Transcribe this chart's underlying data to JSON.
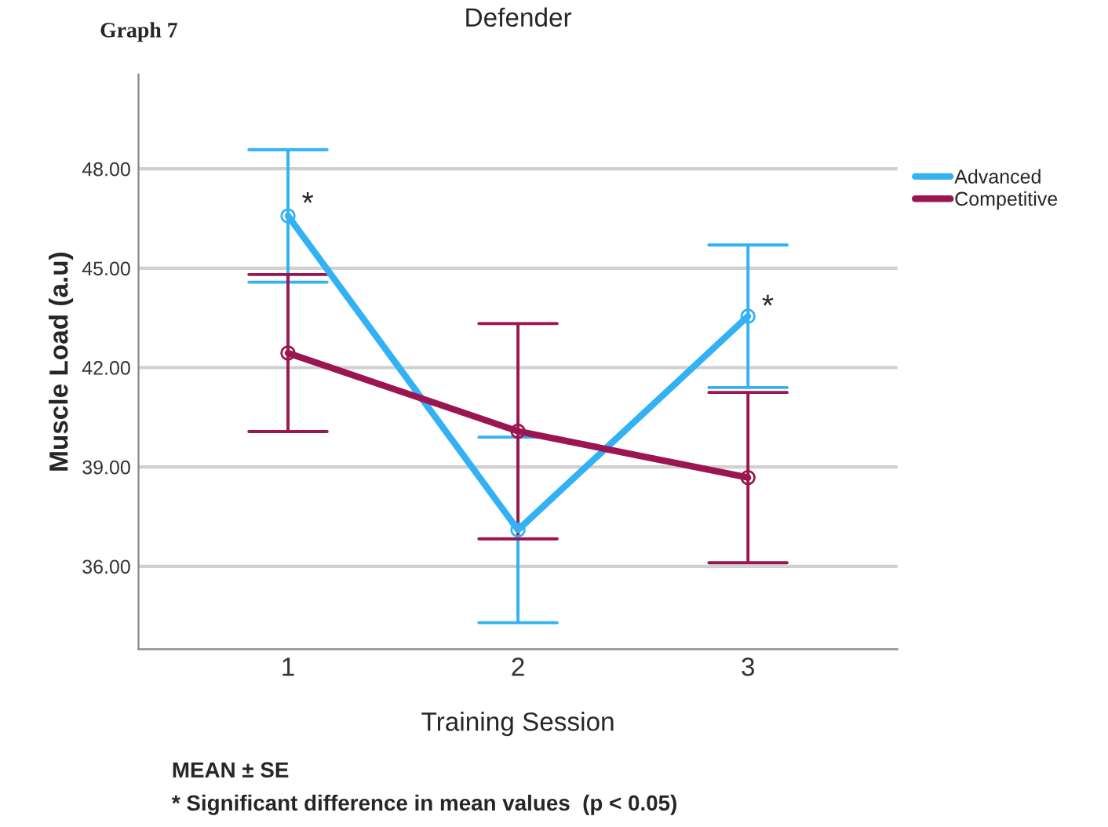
{
  "chart_data": {
    "type": "line",
    "title": "Defender",
    "xlabel": "Training Session",
    "ylabel": "Muscle Load (a.u)",
    "categories": [
      "1",
      "2",
      "3"
    ],
    "series": [
      {
        "name": "Advanced",
        "color": "#33b1f5",
        "values": [
          46.58,
          37.1,
          43.55
        ],
        "errors": [
          2.0,
          2.8,
          2.15
        ]
      },
      {
        "name": "Competitive",
        "color": "#9b1650",
        "values": [
          42.44,
          40.08,
          38.68
        ],
        "errors": [
          2.37,
          3.25,
          2.57
        ]
      }
    ],
    "ylim": [
      33.5,
      50.85
    ],
    "yticks": [
      {
        "value": 36,
        "label": "36.00"
      },
      {
        "value": 39,
        "label": "39.00"
      },
      {
        "value": 42,
        "label": "42.00"
      },
      {
        "value": 45,
        "label": "45.00"
      },
      {
        "value": 48,
        "label": "48.00"
      }
    ],
    "grid": "y",
    "legend": "right",
    "marker": "circle",
    "line_style": "solid",
    "annotations": [
      "Graph 7",
      {
        "text": "*",
        "x": "1",
        "y": 46.9
      },
      {
        "text": "*",
        "x": "3",
        "y": 43.8
      },
      "MEAN ± SE",
      "* Significant difference in mean values  (p < 0.05)"
    ]
  }
}
